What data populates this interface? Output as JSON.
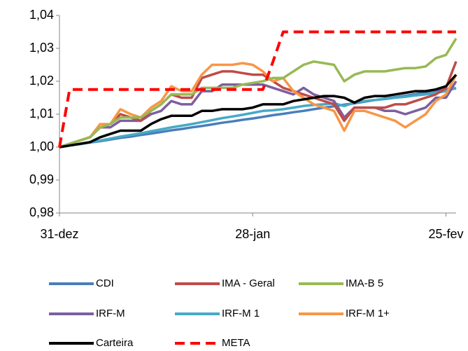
{
  "chart_data": {
    "type": "line",
    "categories": [
      "31-dez",
      null,
      null,
      null,
      null,
      null,
      null,
      null,
      null,
      null,
      null,
      null,
      null,
      null,
      null,
      null,
      null,
      null,
      null,
      "28-jan",
      null,
      null,
      null,
      null,
      null,
      null,
      null,
      null,
      null,
      null,
      null,
      null,
      null,
      null,
      null,
      null,
      null,
      null,
      "25-fev",
      null
    ],
    "ylim": [
      0.98,
      1.04
    ],
    "yticks": [
      {
        "value": 0.98,
        "label": "0,98"
      },
      {
        "value": 0.99,
        "label": "0,99"
      },
      {
        "value": 1.0,
        "label": "1,00"
      },
      {
        "value": 1.01,
        "label": "1,01"
      },
      {
        "value": 1.02,
        "label": "1,02"
      },
      {
        "value": 1.03,
        "label": "1,03"
      },
      {
        "value": 1.04,
        "label": "1,04"
      }
    ],
    "series": [
      {
        "name": "CDI",
        "color": "#4a7ebb",
        "values": [
          1.0,
          1.0005,
          1.0009,
          1.0014,
          1.0018,
          1.0023,
          1.0028,
          1.0032,
          1.0037,
          1.0041,
          1.0046,
          1.0051,
          1.0055,
          1.006,
          1.0064,
          1.0069,
          1.0074,
          1.0078,
          1.0083,
          1.0087,
          1.0092,
          1.0097,
          1.0101,
          1.0106,
          1.011,
          1.0115,
          1.012,
          1.0124,
          1.0129,
          1.0133,
          1.0138,
          1.0143,
          1.0147,
          1.0152,
          1.0156,
          1.0161,
          1.0166,
          1.017,
          1.0175,
          1.0178
        ]
      },
      {
        "name": "IMA - Geral",
        "color": "#be4b48",
        "values": [
          1.0,
          1.001,
          1.002,
          1.003,
          1.006,
          1.007,
          1.01,
          1.009,
          1.008,
          1.011,
          1.013,
          1.016,
          1.015,
          1.015,
          1.021,
          1.022,
          1.023,
          1.023,
          1.0225,
          1.022,
          1.022,
          1.02,
          1.018,
          1.017,
          1.016,
          1.015,
          1.014,
          1.013,
          1.008,
          1.012,
          1.012,
          1.012,
          1.012,
          1.013,
          1.013,
          1.014,
          1.015,
          1.016,
          1.018,
          1.026
        ]
      },
      {
        "name": "IMA-B 5",
        "color": "#98b954",
        "values": [
          1.0,
          1.001,
          1.002,
          1.003,
          1.006,
          1.007,
          1.009,
          1.009,
          1.009,
          1.011,
          1.013,
          1.016,
          1.016,
          1.016,
          1.018,
          1.018,
          1.018,
          1.018,
          1.019,
          1.0195,
          1.02,
          1.021,
          1.021,
          1.023,
          1.025,
          1.026,
          1.0255,
          1.025,
          1.02,
          1.022,
          1.023,
          1.023,
          1.023,
          1.0235,
          1.024,
          1.024,
          1.0245,
          1.027,
          1.028,
          1.033
        ]
      },
      {
        "name": "IRF-M",
        "color": "#7d5fa0",
        "values": [
          1.0,
          1.001,
          1.002,
          1.003,
          1.006,
          1.006,
          1.008,
          1.008,
          1.008,
          1.01,
          1.011,
          1.014,
          1.013,
          1.013,
          1.017,
          1.017,
          1.019,
          1.019,
          1.019,
          1.019,
          1.019,
          1.018,
          1.017,
          1.016,
          1.018,
          1.016,
          1.015,
          1.014,
          1.009,
          1.012,
          1.012,
          1.012,
          1.011,
          1.011,
          1.01,
          1.011,
          1.012,
          1.015,
          1.015,
          1.02
        ]
      },
      {
        "name": "IRF-M 1",
        "color": "#46aac5",
        "values": [
          1.0,
          1.0005,
          1.001,
          1.0015,
          1.002,
          1.0026,
          1.0032,
          1.0037,
          1.0042,
          1.0048,
          1.0054,
          1.006,
          1.0065,
          1.007,
          1.0076,
          1.0082,
          1.0088,
          1.0093,
          1.0098,
          1.0104,
          1.011,
          1.0112,
          1.0115,
          1.012,
          1.0125,
          1.0128,
          1.013,
          1.0133,
          1.0125,
          1.0135,
          1.014,
          1.0143,
          1.0146,
          1.015,
          1.0153,
          1.0157,
          1.016,
          1.0165,
          1.017,
          1.018
        ]
      },
      {
        "name": "IRF-M 1+",
        "color": "#f79646",
        "values": [
          1.0,
          1.001,
          1.002,
          1.003,
          1.007,
          1.007,
          1.0115,
          1.01,
          1.009,
          1.012,
          1.014,
          1.0185,
          1.017,
          1.017,
          1.022,
          1.025,
          1.025,
          1.025,
          1.0255,
          1.025,
          1.023,
          1.02,
          1.021,
          1.017,
          1.015,
          1.013,
          1.012,
          1.011,
          1.005,
          1.011,
          1.011,
          1.01,
          1.009,
          1.008,
          1.006,
          1.008,
          1.01,
          1.014,
          1.016,
          1.022
        ]
      },
      {
        "name": "Carteira",
        "color": "#000000",
        "values": [
          1.0,
          1.0005,
          1.001,
          1.0015,
          1.003,
          1.004,
          1.005,
          1.005,
          1.005,
          1.007,
          1.0085,
          1.0095,
          1.0095,
          1.0095,
          1.011,
          1.011,
          1.0115,
          1.0115,
          1.0115,
          1.012,
          1.013,
          1.013,
          1.013,
          1.014,
          1.0145,
          1.015,
          1.0155,
          1.0155,
          1.015,
          1.0135,
          1.015,
          1.0155,
          1.0155,
          1.016,
          1.0165,
          1.017,
          1.017,
          1.0175,
          1.0185,
          1.022
        ]
      },
      {
        "name": "META",
        "color": "#ff0000",
        "dash": true,
        "values": [
          1.0,
          1.0175,
          1.0175,
          1.0175,
          1.0175,
          1.0175,
          1.0175,
          1.0175,
          1.0175,
          1.0175,
          1.0175,
          1.0175,
          1.0175,
          1.0175,
          1.0175,
          1.0175,
          1.0175,
          1.0175,
          1.0175,
          1.0175,
          1.0175,
          1.026,
          1.035,
          1.035,
          1.035,
          1.035,
          1.035,
          1.035,
          1.035,
          1.035,
          1.035,
          1.035,
          1.035,
          1.035,
          1.035,
          1.035,
          1.035,
          1.035,
          1.035,
          1.035
        ]
      }
    ]
  }
}
